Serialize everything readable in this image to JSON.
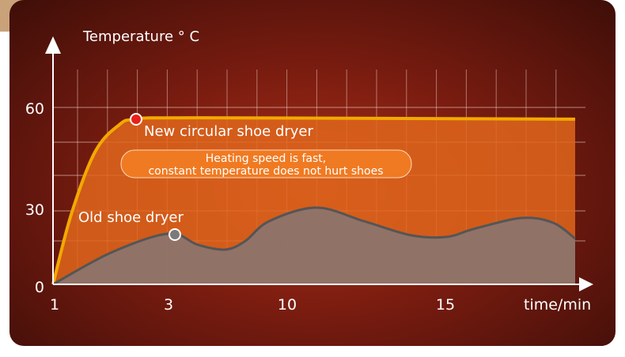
{
  "chart_data": {
    "type": "area",
    "ylabel": "Temperature ° C",
    "xlabel": "time/min",
    "x_ticks": [
      1,
      3,
      10,
      15
    ],
    "y_ticks": [
      0,
      30,
      60
    ],
    "ylim": [
      0,
      60
    ],
    "grid": true,
    "series": [
      {
        "name": "New circular shoe dryer",
        "color": "#f2a900",
        "fill": "#e0661c",
        "x": [
          1,
          1.32,
          1.73,
          2.14,
          2.44,
          4.73,
          19.1
        ],
        "y": [
          0,
          24,
          45,
          54,
          56,
          56.5,
          56
        ]
      },
      {
        "name": "Old shoe dryer",
        "color": "#555555",
        "fill": "#8a7470",
        "x": [
          1,
          2,
          3,
          4.73,
          6.36,
          7.53,
          8.93,
          10.93,
          12.43,
          13.93,
          15.05,
          15.9,
          17.4,
          18.4,
          19.1
        ],
        "y": [
          0,
          10.7,
          17.2,
          13.4,
          11.8,
          14.7,
          21.4,
          26,
          21.4,
          16.6,
          16.1,
          18.8,
          22.5,
          20.9,
          15.5
        ]
      }
    ],
    "annotation": {
      "line1": "Heating speed is fast,",
      "line2": "constant temperature does not hurt shoes"
    }
  }
}
